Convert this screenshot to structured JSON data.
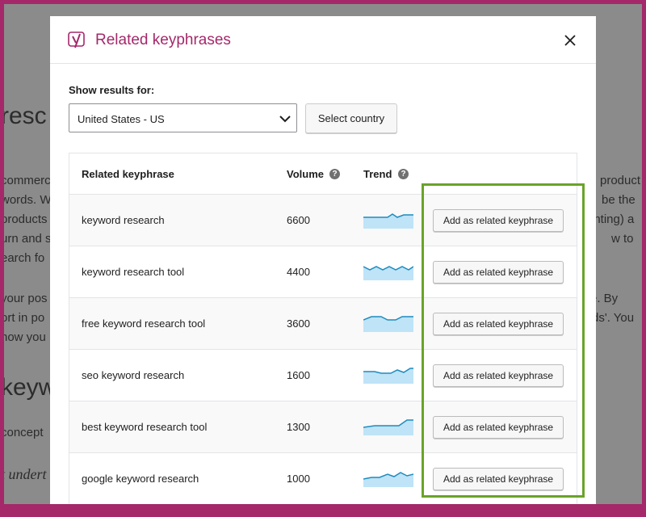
{
  "background_text": {
    "left": [
      "resc",
      "commerc",
      "words. Wh",
      "products",
      "urn and s",
      "earch fo",
      "your pos",
      "ort in po",
      "how you",
      "keyword",
      "concept",
      "t undert"
    ],
    "right": [
      "product",
      "be the",
      "enting) a",
      "w to",
      "e. By",
      "ds'. You"
    ]
  },
  "dialog": {
    "title": "Related keyphrases",
    "show_results_label": "Show results for:",
    "country_select": "United States - US",
    "select_country_button": "Select country",
    "table": {
      "headers": [
        "Related keyphrase",
        "Volume",
        "Trend"
      ],
      "rows": [
        {
          "keyphrase": "keyword research",
          "volume": 6600,
          "action": "Add as related keyphrase"
        },
        {
          "keyphrase": "keyword research tool",
          "volume": 4400,
          "action": "Add as related keyphrase"
        },
        {
          "keyphrase": "free keyword research tool",
          "volume": 3600,
          "action": "Add as related keyphrase"
        },
        {
          "keyphrase": "seo keyword research",
          "volume": 1600,
          "action": "Add as related keyphrase"
        },
        {
          "keyphrase": "best keyword research tool",
          "volume": 1300,
          "action": "Add as related keyphrase"
        },
        {
          "keyphrase": "google keyword research",
          "volume": 1000,
          "action": "Add as related keyphrase"
        }
      ]
    }
  }
}
